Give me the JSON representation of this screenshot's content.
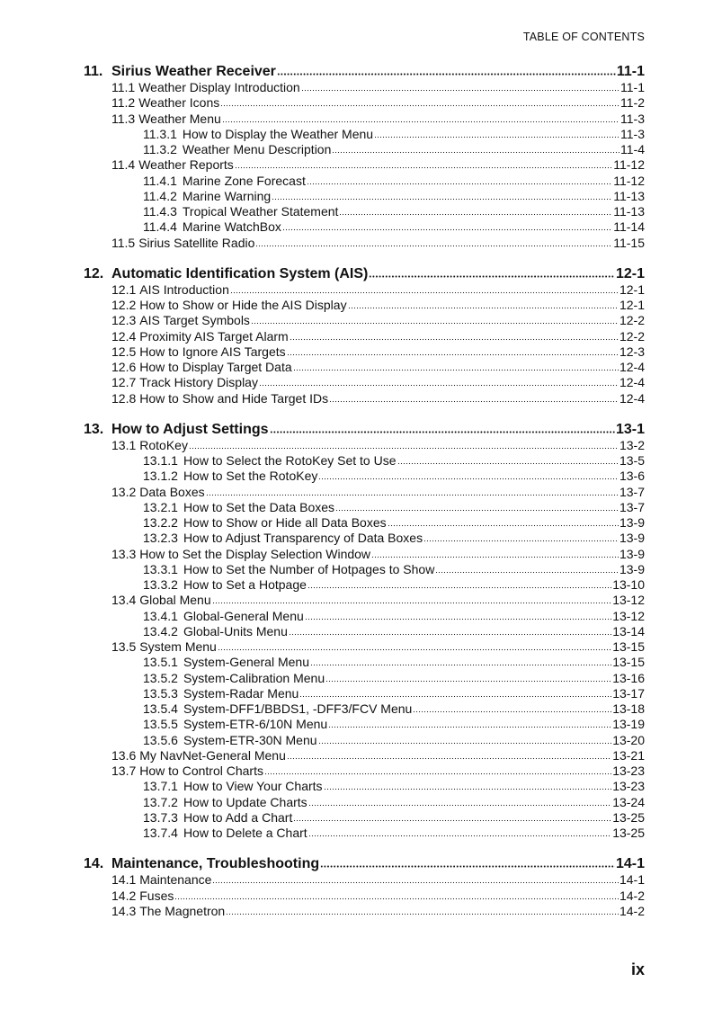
{
  "header": "TABLE OF CONTENTS",
  "folio": "ix",
  "chapters": [
    {
      "num": "11.",
      "title": "Sirius Weather Receiver",
      "page": "11-1",
      "entries": [
        {
          "level": 1,
          "num": "11.1",
          "title": "Weather Display Introduction",
          "page": "11-1"
        },
        {
          "level": 1,
          "num": "11.2",
          "title": "Weather Icons",
          "page": "11-2"
        },
        {
          "level": 1,
          "num": "11.3",
          "title": "Weather Menu",
          "page": "11-3"
        },
        {
          "level": 2,
          "num": "11.3.1",
          "title": "How to Display the Weather Menu",
          "page": "11-3"
        },
        {
          "level": 2,
          "num": "11.3.2",
          "title": "Weather Menu Description",
          "page": "11-4"
        },
        {
          "level": 1,
          "num": "11.4",
          "title": "Weather Reports",
          "page": "11-12"
        },
        {
          "level": 2,
          "num": "11.4.1",
          "title": "Marine Zone Forecast",
          "page": "11-12"
        },
        {
          "level": 2,
          "num": "11.4.2",
          "title": "Marine Warning",
          "page": "11-13"
        },
        {
          "level": 2,
          "num": "11.4.3",
          "title": "Tropical Weather Statement",
          "page": "11-13"
        },
        {
          "level": 2,
          "num": "11.4.4",
          "title": "Marine WatchBox",
          "page": "11-14"
        },
        {
          "level": 1,
          "num": "11.5",
          "title": "Sirius Satellite Radio",
          "page": "11-15"
        }
      ]
    },
    {
      "num": "12.",
      "title": "Automatic Identification System (AIS)",
      "page": "12-1",
      "entries": [
        {
          "level": 1,
          "num": "12.1",
          "title": "AIS Introduction",
          "page": "12-1"
        },
        {
          "level": 1,
          "num": "12.2",
          "title": "How to Show or Hide the AIS Display",
          "page": "12-1"
        },
        {
          "level": 1,
          "num": "12.3",
          "title": "AIS Target Symbols",
          "page": "12-2"
        },
        {
          "level": 1,
          "num": "12.4",
          "title": "Proximity AIS Target Alarm",
          "page": "12-2"
        },
        {
          "level": 1,
          "num": "12.5",
          "title": "How to Ignore AIS Targets",
          "page": "12-3"
        },
        {
          "level": 1,
          "num": "12.6",
          "title": "How to Display Target Data",
          "page": "12-4"
        },
        {
          "level": 1,
          "num": "12.7",
          "title": "Track History Display",
          "page": "12-4"
        },
        {
          "level": 1,
          "num": "12.8",
          "title": "How to Show and Hide Target IDs",
          "page": "12-4"
        }
      ]
    },
    {
      "num": "13.",
      "title": "How to Adjust Settings",
      "page": "13-1",
      "entries": [
        {
          "level": 1,
          "num": "13.1",
          "title": "RotoKey",
          "page": "13-2"
        },
        {
          "level": 2,
          "num": "13.1.1",
          "title": "How to Select the RotoKey Set to Use",
          "page": "13-5"
        },
        {
          "level": 2,
          "num": "13.1.2",
          "title": "How to Set the RotoKey",
          "page": "13-6"
        },
        {
          "level": 1,
          "num": "13.2",
          "title": "Data Boxes",
          "page": "13-7"
        },
        {
          "level": 2,
          "num": "13.2.1",
          "title": "How to Set the Data Boxes",
          "page": "13-7"
        },
        {
          "level": 2,
          "num": "13.2.2",
          "title": "How to Show or Hide all Data Boxes",
          "page": "13-9"
        },
        {
          "level": 2,
          "num": "13.2.3",
          "title": "How to Adjust Transparency of Data Boxes",
          "page": "13-9"
        },
        {
          "level": 1,
          "num": "13.3",
          "title": "How to Set the Display Selection Window",
          "page": "13-9"
        },
        {
          "level": 2,
          "num": "13.3.1",
          "title": "How to Set the Number of Hotpages to Show",
          "page": "13-9"
        },
        {
          "level": 2,
          "num": "13.3.2",
          "title": "How to Set a Hotpage",
          "page": "13-10"
        },
        {
          "level": 1,
          "num": "13.4",
          "title": "Global Menu",
          "page": "13-12"
        },
        {
          "level": 2,
          "num": "13.4.1",
          "title": "Global-General Menu",
          "page": "13-12"
        },
        {
          "level": 2,
          "num": "13.4.2",
          "title": "Global-Units Menu",
          "page": "13-14"
        },
        {
          "level": 1,
          "num": "13.5",
          "title": "System Menu",
          "page": "13-15"
        },
        {
          "level": 2,
          "num": "13.5.1",
          "title": "System-General Menu",
          "page": "13-15"
        },
        {
          "level": 2,
          "num": "13.5.2",
          "title": "System-Calibration Menu",
          "page": "13-16"
        },
        {
          "level": 2,
          "num": "13.5.3",
          "title": "System-Radar Menu",
          "page": "13-17"
        },
        {
          "level": 2,
          "num": "13.5.4",
          "title": "System-DFF1/BBDS1, -DFF3/FCV Menu",
          "page": "13-18"
        },
        {
          "level": 2,
          "num": "13.5.5",
          "title": "System-ETR-6/10N Menu",
          "page": "13-19"
        },
        {
          "level": 2,
          "num": "13.5.6",
          "title": "System-ETR-30N Menu",
          "page": "13-20"
        },
        {
          "level": 1,
          "num": "13.6",
          "title": "My NavNet-General Menu",
          "page": "13-21"
        },
        {
          "level": 1,
          "num": "13.7",
          "title": "How to Control Charts",
          "page": "13-23"
        },
        {
          "level": 2,
          "num": "13.7.1",
          "title": "How to View Your Charts",
          "page": "13-23"
        },
        {
          "level": 2,
          "num": "13.7.2",
          "title": "How to Update Charts",
          "page": "13-24"
        },
        {
          "level": 2,
          "num": "13.7.3",
          "title": "How to Add a Chart",
          "page": "13-25"
        },
        {
          "level": 2,
          "num": "13.7.4",
          "title": "How to Delete a Chart",
          "page": "13-25"
        }
      ]
    },
    {
      "num": "14.",
      "title": "Maintenance, Troubleshooting",
      "page": "14-1",
      "entries": [
        {
          "level": 1,
          "num": "14.1",
          "title": "Maintenance",
          "page": "14-1"
        },
        {
          "level": 1,
          "num": "14.2",
          "title": "Fuses",
          "page": "14-2"
        },
        {
          "level": 1,
          "num": "14.3",
          "title": "The Magnetron",
          "page": "14-2"
        }
      ]
    }
  ]
}
